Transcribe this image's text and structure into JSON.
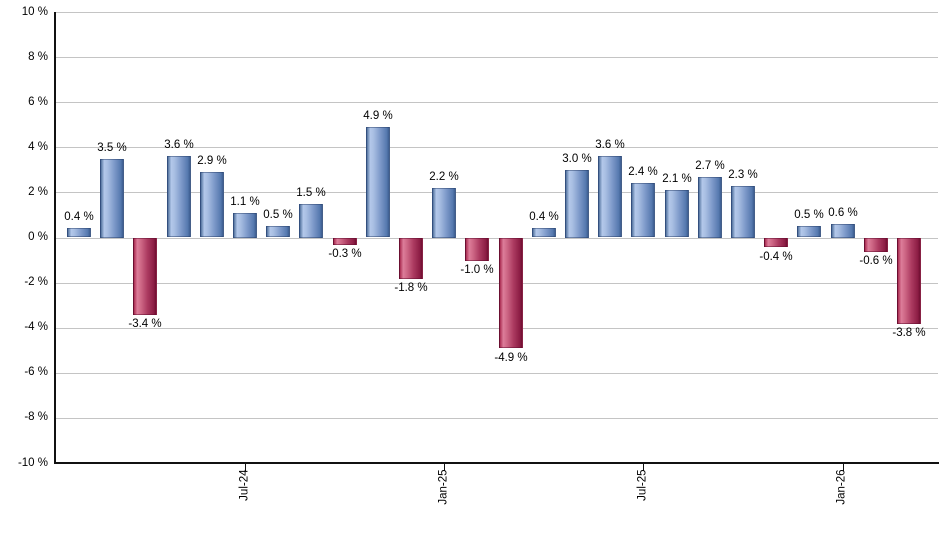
{
  "chart_data": {
    "type": "bar",
    "title": "",
    "xlabel": "",
    "ylabel": "",
    "ylim": [
      -10,
      10
    ],
    "y_tick_step": 2,
    "grid": true,
    "legend": "none",
    "y_tick_labels": [
      "10 %",
      "8 %",
      "6 %",
      "4 %",
      "2 %",
      "0 %",
      "-2 %",
      "-4 %",
      "-6 %",
      "-8 %",
      "-10 %"
    ],
    "values": [
      0.4,
      3.5,
      -3.4,
      3.6,
      2.9,
      1.1,
      0.5,
      1.5,
      -0.3,
      4.9,
      -1.8,
      2.2,
      -1.0,
      -4.9,
      0.4,
      3.0,
      3.6,
      2.4,
      2.1,
      2.7,
      2.3,
      -0.4,
      0.5,
      0.6,
      -0.6,
      -3.8
    ],
    "bar_labels": [
      "0.4 %",
      "3.5 %",
      "-3.4 %",
      "3.6 %",
      "2.9 %",
      "1.1 %",
      "0.5 %",
      "1.5 %",
      "-0.3 %",
      "4.9 %",
      "-1.8 %",
      "2.2 %",
      "-1.0 %",
      "-4.9 %",
      "0.4 %",
      "3.0 %",
      "3.6 %",
      "2.4 %",
      "2.1 %",
      "2.7 %",
      "2.3 %",
      "-0.4 %",
      "0.5 %",
      "0.6 %",
      "-0.6 %",
      "-3.8 %"
    ],
    "x_ticks": [
      {
        "index": 5,
        "label": "Jul-24"
      },
      {
        "index": 11,
        "label": "Jan-25"
      },
      {
        "index": 17,
        "label": "Jul-25"
      },
      {
        "index": 23,
        "label": "Jan-26"
      }
    ],
    "colors": {
      "positive_gradient": [
        "#54739f",
        "#b3c8ea",
        "#a8bee2",
        "#7e9aca",
        "#5578ae",
        "#3c5d90"
      ],
      "positive_stops": [
        0,
        15,
        30,
        60,
        90,
        100
      ],
      "negative_gradient": [
        "#aa2c52",
        "#dc7d99",
        "#d06a88",
        "#ad3c62",
        "#8c1d44",
        "#6f0e31"
      ],
      "negative_stops": [
        0,
        15,
        30,
        60,
        90,
        100
      ],
      "grid": "#c4c4c4",
      "axis": "#111111",
      "text": "#000000",
      "background": "#ffffff"
    }
  }
}
